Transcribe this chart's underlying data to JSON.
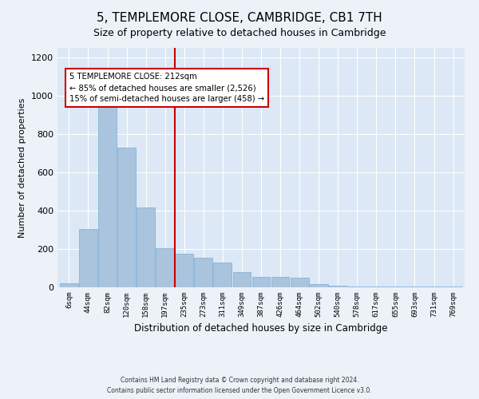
{
  "title": "5, TEMPLEMORE CLOSE, CAMBRIDGE, CB1 7TH",
  "subtitle": "Size of property relative to detached houses in Cambridge",
  "xlabel": "Distribution of detached houses by size in Cambridge",
  "ylabel": "Number of detached properties",
  "bar_color": "#aac4de",
  "bar_edge_color": "#7aadd4",
  "vline_color": "#cc0000",
  "vline_x": 5.5,
  "annotation_text": "5 TEMPLEMORE CLOSE: 212sqm\n← 85% of detached houses are smaller (2,526)\n15% of semi-detached houses are larger (458) →",
  "annotation_box_color": "#ffffff",
  "annotation_box_edge": "#cc0000",
  "bins": [
    "6sqm",
    "44sqm",
    "82sqm",
    "120sqm",
    "158sqm",
    "197sqm",
    "235sqm",
    "273sqm",
    "311sqm",
    "349sqm",
    "387sqm",
    "426sqm",
    "464sqm",
    "502sqm",
    "540sqm",
    "578sqm",
    "617sqm",
    "655sqm",
    "693sqm",
    "731sqm",
    "769sqm"
  ],
  "values": [
    20,
    305,
    960,
    730,
    415,
    205,
    175,
    155,
    130,
    80,
    55,
    55,
    50,
    15,
    8,
    5,
    3,
    3,
    3,
    3,
    5
  ],
  "ylim": [
    0,
    1250
  ],
  "yticks": [
    0,
    200,
    400,
    600,
    800,
    1000,
    1200
  ],
  "footer1": "Contains HM Land Registry data © Crown copyright and database right 2024.",
  "footer2": "Contains public sector information licensed under the Open Government Licence v3.0.",
  "bg_color": "#edf2f9",
  "plot_bg_color": "#dce8f5",
  "title_fontsize": 11,
  "subtitle_fontsize": 9
}
